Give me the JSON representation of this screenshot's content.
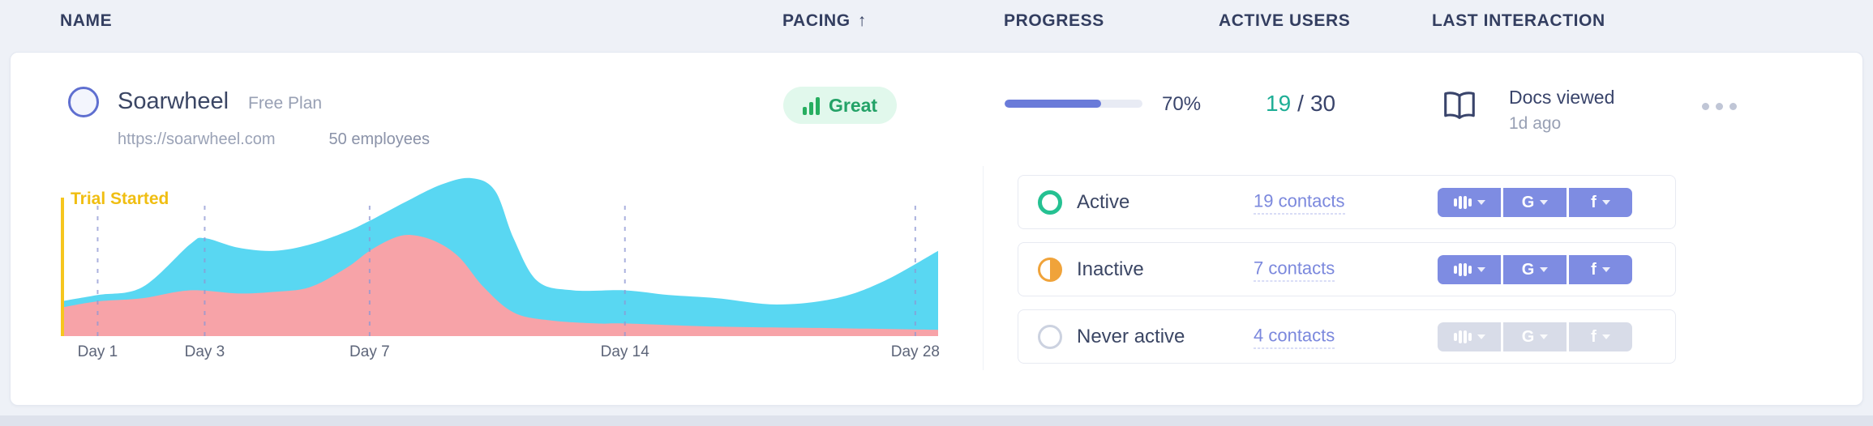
{
  "colors": {
    "accent_indigo": "#6a7bd9",
    "teal": "#1fae96",
    "green": "#27ae60",
    "badge_bg": "#e1f8ec",
    "badge_text": "#23a267",
    "yellow": "#f6c61e",
    "cyan": "#59d7f2",
    "pink": "#f7a3a8",
    "gridline": "#8e98d4",
    "navy": "#39446b",
    "gray_text": "#98a0b4"
  },
  "header": {
    "columns": [
      {
        "label": "NAME"
      },
      {
        "label": "PACING",
        "sort": "↑"
      },
      {
        "label": "PROGRESS"
      },
      {
        "label": "ACTIVE USERS"
      },
      {
        "label": "LAST INTERACTION"
      }
    ]
  },
  "company": {
    "name": "Soarwheel",
    "plan": "Free Plan",
    "url": "https://soarwheel.com",
    "employees": "50 employees"
  },
  "pacing": {
    "label": "Great"
  },
  "progress": {
    "percent": 70,
    "label": "70%"
  },
  "active_users": {
    "current": "19",
    "separator": "/",
    "total": "30"
  },
  "last_interaction": {
    "event": "Docs viewed",
    "time": "1d ago"
  },
  "chart_data": {
    "type": "area",
    "annotation": "Trial Started",
    "ylim": [
      0,
      100
    ],
    "legend": "none",
    "x_ticks": [
      {
        "label": "Day 1",
        "pos": 4.2
      },
      {
        "label": "Day 3",
        "pos": 16.4
      },
      {
        "label": "Day 7",
        "pos": 35.2
      },
      {
        "label": "Day 14",
        "pos": 64.3
      },
      {
        "label": "Day 28",
        "pos": 97.4
      }
    ],
    "series": [
      {
        "name": "series-blue",
        "color": "#59d7f2",
        "points": [
          [
            0,
            22
          ],
          [
            4.2,
            26
          ],
          [
            9.3,
            31
          ],
          [
            14.7,
            58
          ],
          [
            16.4,
            62
          ],
          [
            20.2,
            56
          ],
          [
            24.3,
            54
          ],
          [
            28.4,
            58
          ],
          [
            32.5,
            66
          ],
          [
            35.2,
            73
          ],
          [
            39.3,
            85
          ],
          [
            43.4,
            96
          ],
          [
            46.8,
            100
          ],
          [
            49.5,
            92
          ],
          [
            51.6,
            62
          ],
          [
            54.3,
            35
          ],
          [
            58.4,
            29
          ],
          [
            64.3,
            29
          ],
          [
            69.3,
            26
          ],
          [
            74.8,
            24
          ],
          [
            81.6,
            20
          ],
          [
            88.4,
            24
          ],
          [
            93.9,
            35
          ],
          [
            100,
            54
          ]
        ]
      },
      {
        "name": "series-pink",
        "color": "#f7a3a8",
        "points": [
          [
            0,
            18
          ],
          [
            4.2,
            22
          ],
          [
            9.3,
            24
          ],
          [
            14.7,
            29
          ],
          [
            20.2,
            27
          ],
          [
            24.3,
            28
          ],
          [
            28.4,
            31
          ],
          [
            32.5,
            43
          ],
          [
            35.2,
            54
          ],
          [
            37.9,
            62
          ],
          [
            40,
            64
          ],
          [
            42.7,
            60
          ],
          [
            45.4,
            50
          ],
          [
            48.2,
            31
          ],
          [
            51.6,
            15
          ],
          [
            55.7,
            10
          ],
          [
            61.1,
            8
          ],
          [
            64.3,
            8
          ],
          [
            74.8,
            6
          ],
          [
            88.4,
            5
          ],
          [
            100,
            4
          ]
        ]
      }
    ]
  },
  "status_rows": [
    {
      "status": "Active",
      "contacts": "19 contacts",
      "disabled": false
    },
    {
      "status": "Inactive",
      "contacts": "7 contacts",
      "disabled": false
    },
    {
      "status": "Never active",
      "contacts": "4 contacts",
      "disabled": true
    }
  ],
  "integrations": {
    "google_glyph": "G",
    "facebook_glyph": "f"
  }
}
